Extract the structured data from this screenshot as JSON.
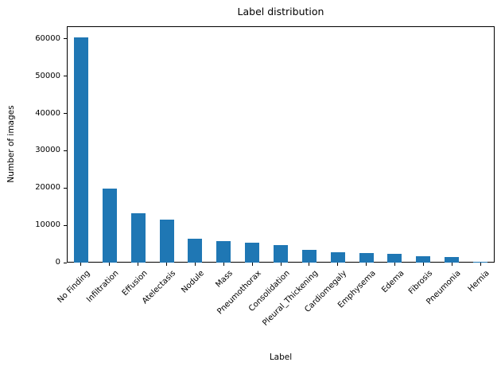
{
  "chart_data": {
    "type": "bar",
    "title": "Label distribution",
    "xlabel": "Label",
    "ylabel": "Number of images",
    "categories": [
      "No Finding",
      "Infiltration",
      "Effusion",
      "Atelectasis",
      "Nodule",
      "Mass",
      "Pneumothorax",
      "Consolidation",
      "Pleural_Thickening",
      "Cardiomegaly",
      "Emphysema",
      "Edema",
      "Fibrosis",
      "Pneumonia",
      "Hernia"
    ],
    "values": [
      60361,
      19894,
      13317,
      11559,
      6331,
      5782,
      5302,
      4667,
      3385,
      2776,
      2516,
      2303,
      1686,
      1431,
      227
    ],
    "bar_color": "#1f77b4",
    "axis_color": "#000000",
    "background_color": "#ffffff",
    "ylim": [
      0,
      63400
    ],
    "yticks": [
      0,
      10000,
      20000,
      30000,
      40000,
      50000,
      60000
    ],
    "xtick_rotation_deg": 45,
    "grid": false,
    "legend_position": "none"
  }
}
